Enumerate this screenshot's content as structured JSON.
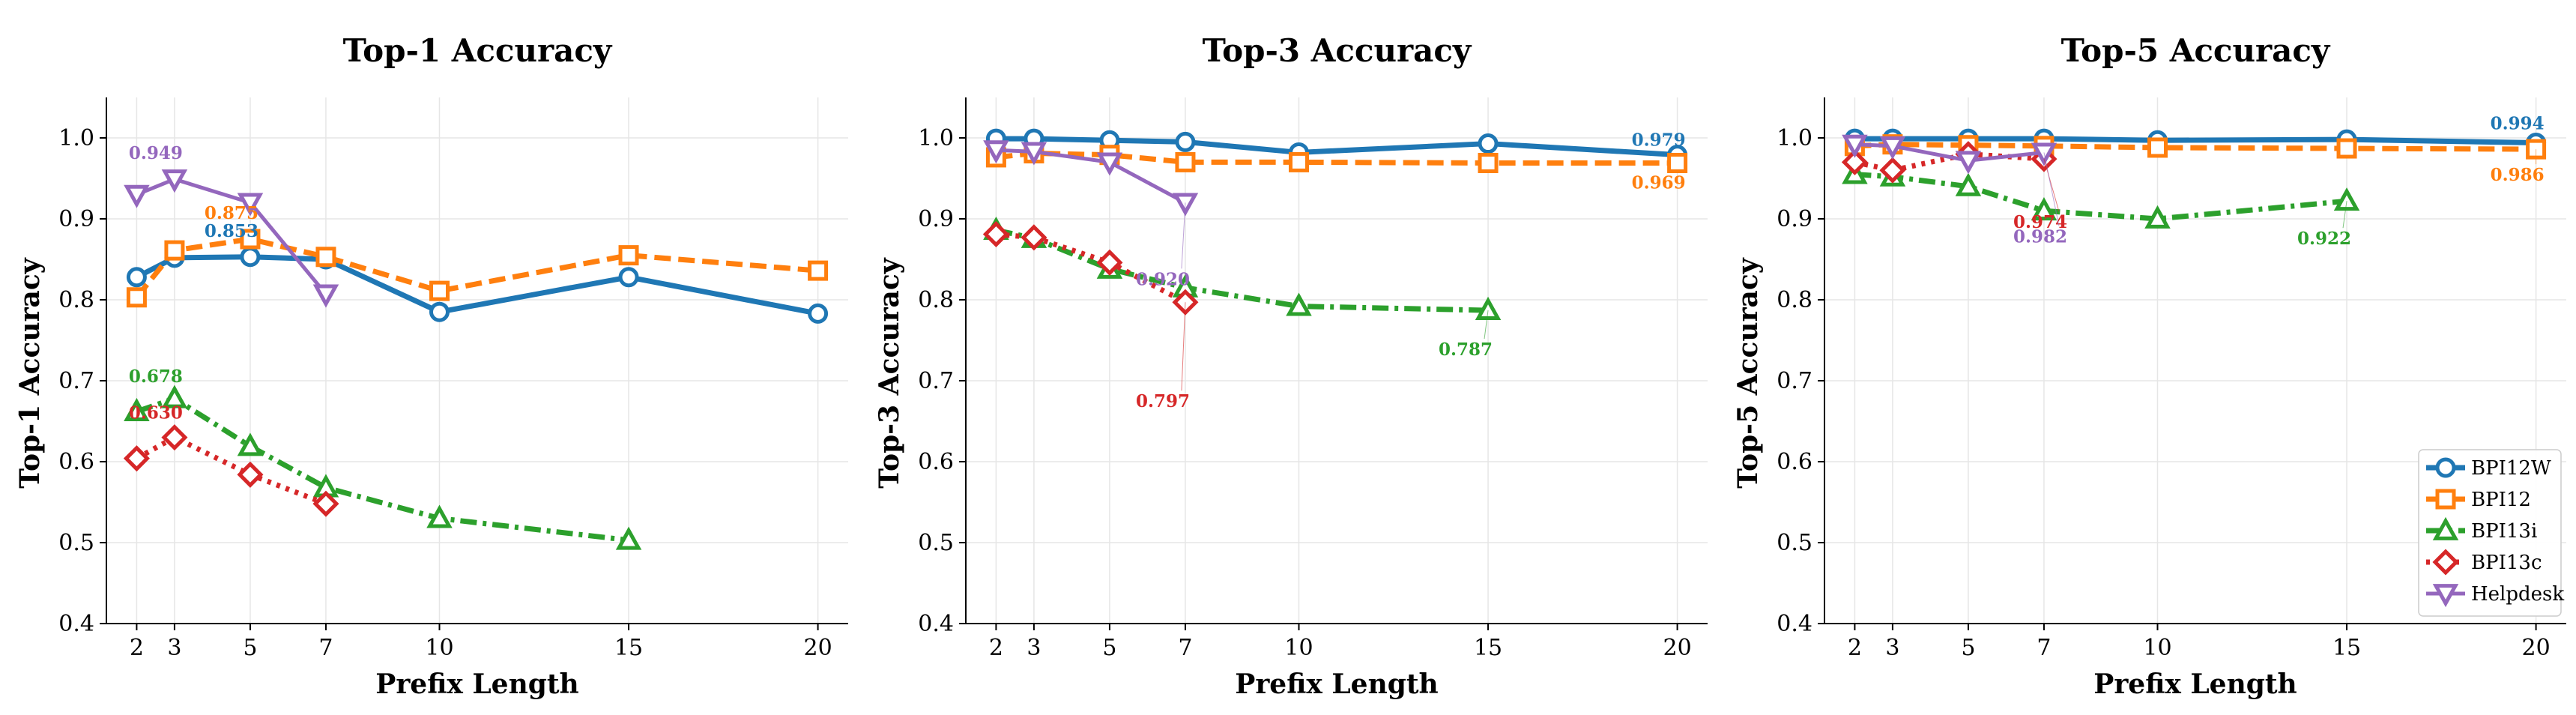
{
  "colors": {
    "BPI12W": "#1f77b4",
    "BPI12": "#ff7f0e",
    "BPI13i": "#2ca02c",
    "BPI13c": "#d62728",
    "Helpdesk": "#9467bd"
  },
  "legend": [
    {
      "name": "BPI12W",
      "marker": "circle",
      "dash": "solid"
    },
    {
      "name": "BPI12",
      "marker": "square",
      "dash": "dashed"
    },
    {
      "name": "BPI13i",
      "marker": "triangle-up",
      "dash": "dashdot"
    },
    {
      "name": "BPI13c",
      "marker": "diamond",
      "dash": "dotted"
    },
    {
      "name": "Helpdesk",
      "marker": "triangle-down",
      "dash": "solid"
    }
  ],
  "legend_placement": "lower-right of third chart",
  "chart_data": [
    {
      "type": "line",
      "title": "Top-1 Accuracy",
      "xlabel": "Prefix Length",
      "ylabel": "Top-1 Accuracy",
      "ylim": [
        0.4,
        1.05
      ],
      "yticks": [
        "0.4",
        "0.5",
        "0.6",
        "0.7",
        "0.8",
        "0.9",
        "1.0"
      ],
      "xticks": [
        "2",
        "3",
        "5",
        "7",
        "10",
        "15",
        "20"
      ],
      "grid": true,
      "series": [
        {
          "name": "BPI12W",
          "x": [
            2,
            3,
            5,
            7,
            10,
            15,
            20
          ],
          "y": [
            0.828,
            0.852,
            0.853,
            0.85,
            0.785,
            0.828,
            0.783
          ]
        },
        {
          "name": "BPI12",
          "x": [
            2,
            3,
            5,
            7,
            10,
            15,
            20
          ],
          "y": [
            0.803,
            0.861,
            0.875,
            0.853,
            0.811,
            0.855,
            0.836
          ]
        },
        {
          "name": "BPI13i",
          "x": [
            2,
            3,
            5,
            7,
            10,
            15
          ],
          "y": [
            0.662,
            0.678,
            0.619,
            0.568,
            0.53,
            0.503
          ]
        },
        {
          "name": "BPI13c",
          "x": [
            2,
            3,
            5,
            7
          ],
          "y": [
            0.604,
            0.63,
            0.584,
            0.548
          ]
        },
        {
          "name": "Helpdesk",
          "x": [
            2,
            3,
            5,
            7
          ],
          "y": [
            0.93,
            0.949,
            0.92,
            0.807
          ]
        }
      ],
      "annotations": [
        {
          "text": "0.949",
          "series": "Helpdesk",
          "x": 3,
          "y": 0.949
        },
        {
          "text": "0.875",
          "series": "BPI12",
          "x": 5,
          "y": 0.875
        },
        {
          "text": "0.853",
          "series": "BPI12W",
          "x": 5,
          "y": 0.853
        },
        {
          "text": "0.678",
          "series": "BPI13i",
          "x": 3,
          "y": 0.678
        },
        {
          "text": "0.630",
          "series": "BPI13c",
          "x": 3,
          "y": 0.63
        }
      ]
    },
    {
      "type": "line",
      "title": "Top-3 Accuracy",
      "xlabel": "Prefix Length",
      "ylabel": "Top-3 Accuracy",
      "ylim": [
        0.4,
        1.05
      ],
      "yticks": [
        "0.4",
        "0.5",
        "0.6",
        "0.7",
        "0.8",
        "0.9",
        "1.0"
      ],
      "xticks": [
        "2",
        "3",
        "5",
        "7",
        "10",
        "15",
        "20"
      ],
      "grid": true,
      "series": [
        {
          "name": "BPI12W",
          "x": [
            2,
            3,
            5,
            7,
            10,
            15,
            20
          ],
          "y": [
            0.999,
            0.999,
            0.997,
            0.995,
            0.982,
            0.993,
            0.979
          ]
        },
        {
          "name": "BPI12",
          "x": [
            2,
            3,
            5,
            7,
            10,
            15,
            20
          ],
          "y": [
            0.976,
            0.981,
            0.979,
            0.97,
            0.97,
            0.969,
            0.969
          ]
        },
        {
          "name": "BPI13i",
          "x": [
            2,
            3,
            5,
            7,
            10,
            15
          ],
          "y": [
            0.886,
            0.876,
            0.838,
            0.815,
            0.792,
            0.787
          ]
        },
        {
          "name": "BPI13c",
          "x": [
            2,
            3,
            5,
            7
          ],
          "y": [
            0.881,
            0.877,
            0.846,
            0.797
          ]
        },
        {
          "name": "Helpdesk",
          "x": [
            2,
            3,
            5,
            7
          ],
          "y": [
            0.985,
            0.983,
            0.97,
            0.92
          ]
        }
      ],
      "annotations": [
        {
          "text": "0.979",
          "series": "BPI12W",
          "x": 20,
          "y": 0.979
        },
        {
          "text": "0.969",
          "series": "BPI12",
          "x": 20,
          "y": 0.969
        },
        {
          "text": "0.920",
          "series": "Helpdesk",
          "x": 7,
          "y": 0.92
        },
        {
          "text": "0.797",
          "series": "BPI13c",
          "x": 7,
          "y": 0.797
        },
        {
          "text": "0.787",
          "series": "BPI13i",
          "x": 15,
          "y": 0.787
        }
      ]
    },
    {
      "type": "line",
      "title": "Top-5 Accuracy",
      "xlabel": "Prefix Length",
      "ylabel": "Top-5 Accuracy",
      "ylim": [
        0.4,
        1.05
      ],
      "yticks": [
        "0.4",
        "0.5",
        "0.6",
        "0.7",
        "0.8",
        "0.9",
        "1.0"
      ],
      "xticks": [
        "2",
        "3",
        "5",
        "7",
        "10",
        "15",
        "20"
      ],
      "grid": true,
      "series": [
        {
          "name": "BPI12W",
          "x": [
            2,
            3,
            5,
            7,
            10,
            15,
            20
          ],
          "y": [
            0.999,
            0.999,
            0.999,
            0.999,
            0.997,
            0.998,
            0.994
          ]
        },
        {
          "name": "BPI12",
          "x": [
            2,
            3,
            5,
            7,
            10,
            15,
            20
          ],
          "y": [
            0.99,
            0.992,
            0.991,
            0.99,
            0.988,
            0.987,
            0.986
          ]
        },
        {
          "name": "BPI13i",
          "x": [
            2,
            3,
            5,
            7,
            10,
            15
          ],
          "y": [
            0.955,
            0.952,
            0.94,
            0.91,
            0.9,
            0.922
          ]
        },
        {
          "name": "BPI13c",
          "x": [
            2,
            3,
            5,
            7
          ],
          "y": [
            0.97,
            0.96,
            0.98,
            0.974
          ]
        },
        {
          "name": "Helpdesk",
          "x": [
            2,
            3,
            5,
            7
          ],
          "y": [
            0.992,
            0.99,
            0.972,
            0.982
          ]
        }
      ],
      "annotations": [
        {
          "text": "0.994",
          "series": "BPI12W",
          "x": 20,
          "y": 0.994
        },
        {
          "text": "0.986",
          "series": "BPI12",
          "x": 20,
          "y": 0.986
        },
        {
          "text": "0.974",
          "series": "BPI13c",
          "x": 7,
          "y": 0.974
        },
        {
          "text": "0.982",
          "series": "Helpdesk",
          "x": 7,
          "y": 0.982
        },
        {
          "text": "0.922",
          "series": "BPI13i",
          "x": 15,
          "y": 0.922
        }
      ]
    }
  ]
}
